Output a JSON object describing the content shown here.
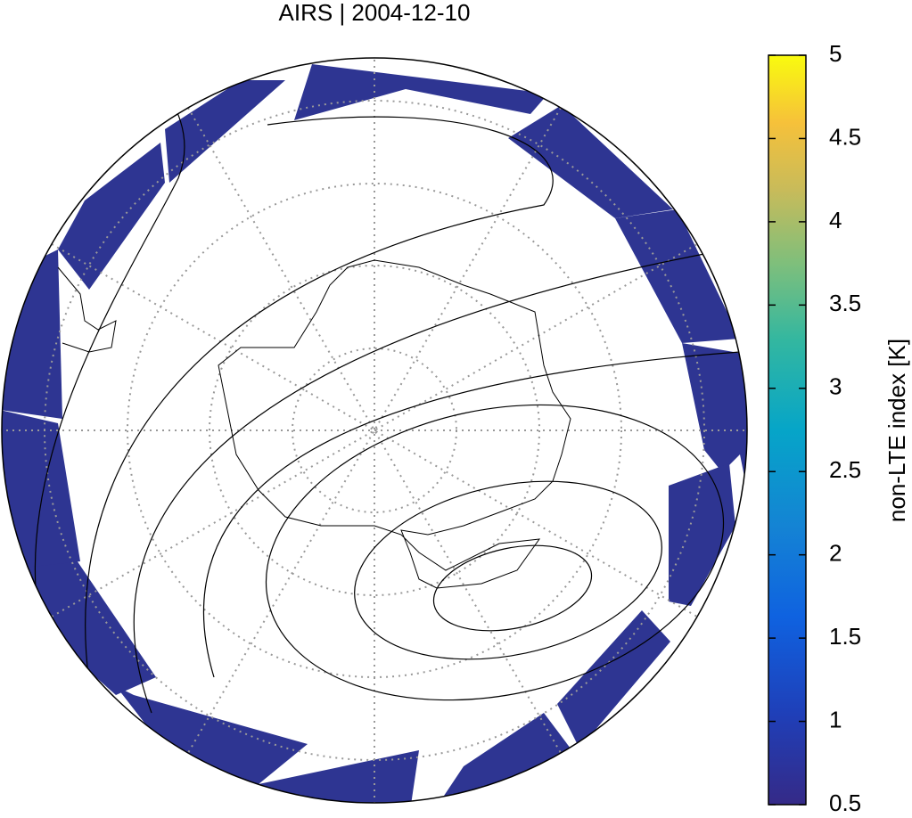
{
  "chart_data": {
    "type": "map",
    "title": "AIRS | 2004-12-10",
    "colorbar": {
      "label": "non-LTE index [K]",
      "ylim": [
        0.5,
        5
      ],
      "yticks": [
        0.5,
        1,
        1.5,
        2,
        2.5,
        3,
        3.5,
        4,
        4.5,
        5
      ]
    }
  }
}
